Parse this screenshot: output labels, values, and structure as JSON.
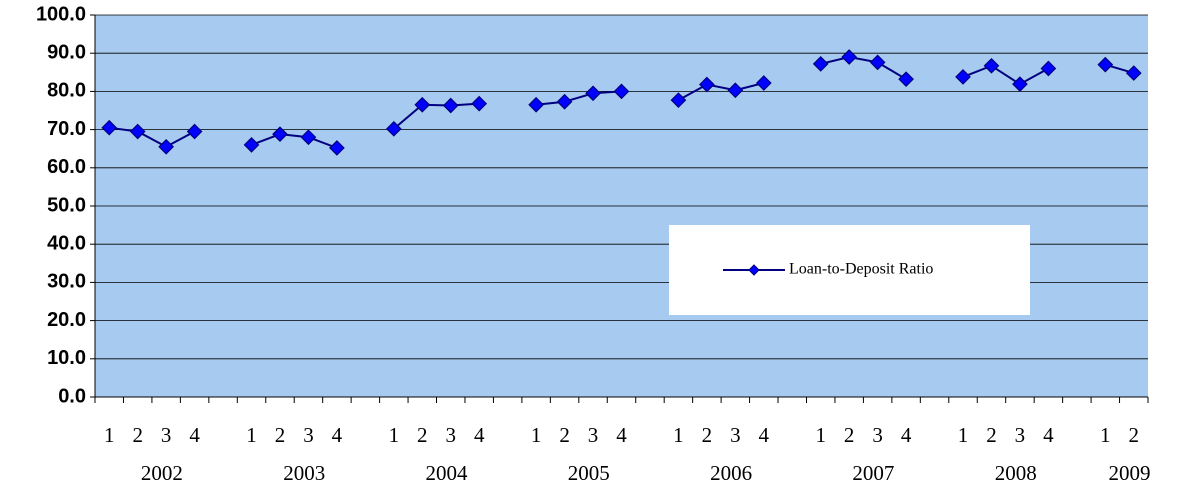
{
  "chart_data": {
    "type": "line",
    "categories": [
      "1",
      "2",
      "3",
      "4",
      null,
      "1",
      "2",
      "3",
      "4",
      null,
      "1",
      "2",
      "3",
      "4",
      null,
      "1",
      "2",
      "3",
      "4",
      null,
      "1",
      "2",
      "3",
      "4",
      null,
      "1",
      "2",
      "3",
      "4",
      null,
      "1",
      "2",
      "3",
      "4",
      null,
      "1",
      "2"
    ],
    "groups": [
      "2002",
      "2003",
      "2004",
      "2005",
      "2006",
      "2007",
      "2008",
      "2009"
    ],
    "series": [
      {
        "name": "Loan-to-Deposit Ratio",
        "color": "#000080",
        "marker_color": "#0000ff",
        "values": [
          70.5,
          69.5,
          65.5,
          69.5,
          null,
          66.0,
          68.8,
          68.0,
          65.2,
          null,
          70.2,
          76.5,
          76.3,
          76.8,
          null,
          76.5,
          77.3,
          79.5,
          80.0,
          null,
          77.7,
          81.8,
          80.3,
          82.2,
          null,
          87.2,
          89.0,
          87.6,
          83.2,
          null,
          83.8,
          86.7,
          81.9,
          86.0,
          null,
          87.0,
          84.8
        ]
      }
    ],
    "ylim": [
      0,
      100
    ],
    "yticks": [
      {
        "value": 0,
        "label": "0.0"
      },
      {
        "value": 10,
        "label": "10.0"
      },
      {
        "value": 20,
        "label": "20.0"
      },
      {
        "value": 30,
        "label": "30.0"
      },
      {
        "value": 40,
        "label": "40.0"
      },
      {
        "value": 50,
        "label": "50.0"
      },
      {
        "value": 60,
        "label": "60.0"
      },
      {
        "value": 70,
        "label": "70.0"
      },
      {
        "value": 80,
        "label": "80.0"
      },
      {
        "value": 90,
        "label": "90.0"
      },
      {
        "value": 100,
        "label": "100.0"
      }
    ],
    "grid": true,
    "plot_background": "#a6caf0"
  }
}
